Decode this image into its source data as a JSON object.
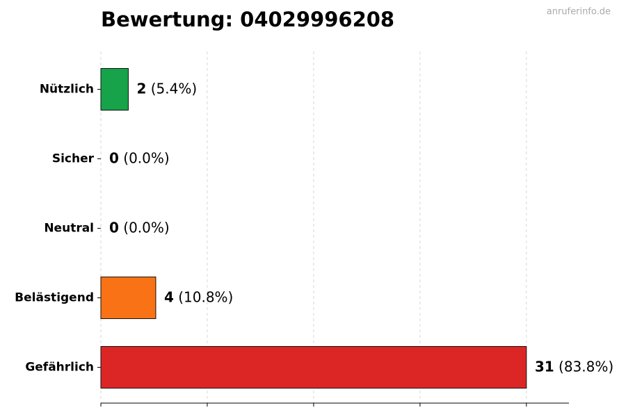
{
  "chart_data": {
    "type": "barh",
    "title": "Bewertung: 04029996208",
    "watermark": "anruferinfo.de",
    "categories": [
      "Nützlich",
      "Sicher",
      "Neutral",
      "Belästigend",
      "Gefährlich"
    ],
    "values": [
      2,
      0,
      0,
      4,
      31
    ],
    "value_labels": [
      "(5.4%)",
      "(0.0%)",
      "(0.0%)",
      "(10.8%)",
      "(83.8%)"
    ],
    "colors": [
      "#16a34a",
      "#6b7280",
      "#9ca3af",
      "#f97316",
      "#dc2626"
    ],
    "xlim": [
      0,
      34.1
    ],
    "xticks": [
      0,
      7.75,
      15.5,
      23.25,
      31
    ],
    "grid": true
  }
}
